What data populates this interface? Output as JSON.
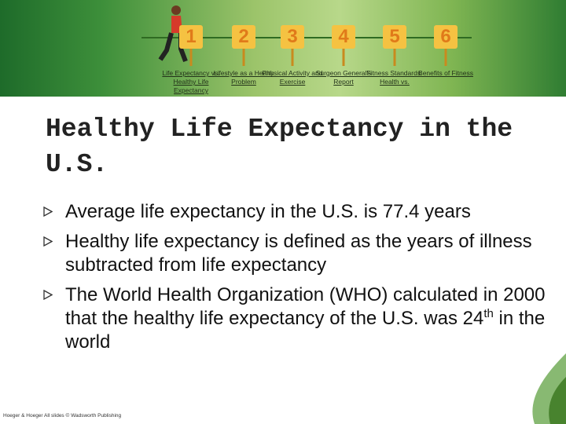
{
  "header": {
    "nav": [
      {
        "number": "1",
        "label": "Life Expectancy vs. Healthy Life Expectancy"
      },
      {
        "number": "2",
        "label": "Lifestyle as a Health Problem"
      },
      {
        "number": "3",
        "label": "Physical Activity and Exercise"
      },
      {
        "number": "4",
        "label": "Surgeon General's Report"
      },
      {
        "number": "5",
        "label": "Fitness Standards: Health vs."
      },
      {
        "number": "6",
        "label": "Benefits of Fitness"
      }
    ]
  },
  "title": "Healthy Life Expectancy in the U.S.",
  "bullets": [
    {
      "text": "Average life expectancy in the U.S. is 77.4 years"
    },
    {
      "text": "Healthy life expectancy is defined as the years of illness subtracted from life expectancy"
    },
    {
      "text": "The World Health Organization (WHO) calculated in 2000 that the healthy life expectancy of the U.S. was 24",
      "sup": "th",
      "after": " in the world"
    }
  ],
  "footer": "Hoeger & Hoeger All slides © Wadsworth Publishing"
}
